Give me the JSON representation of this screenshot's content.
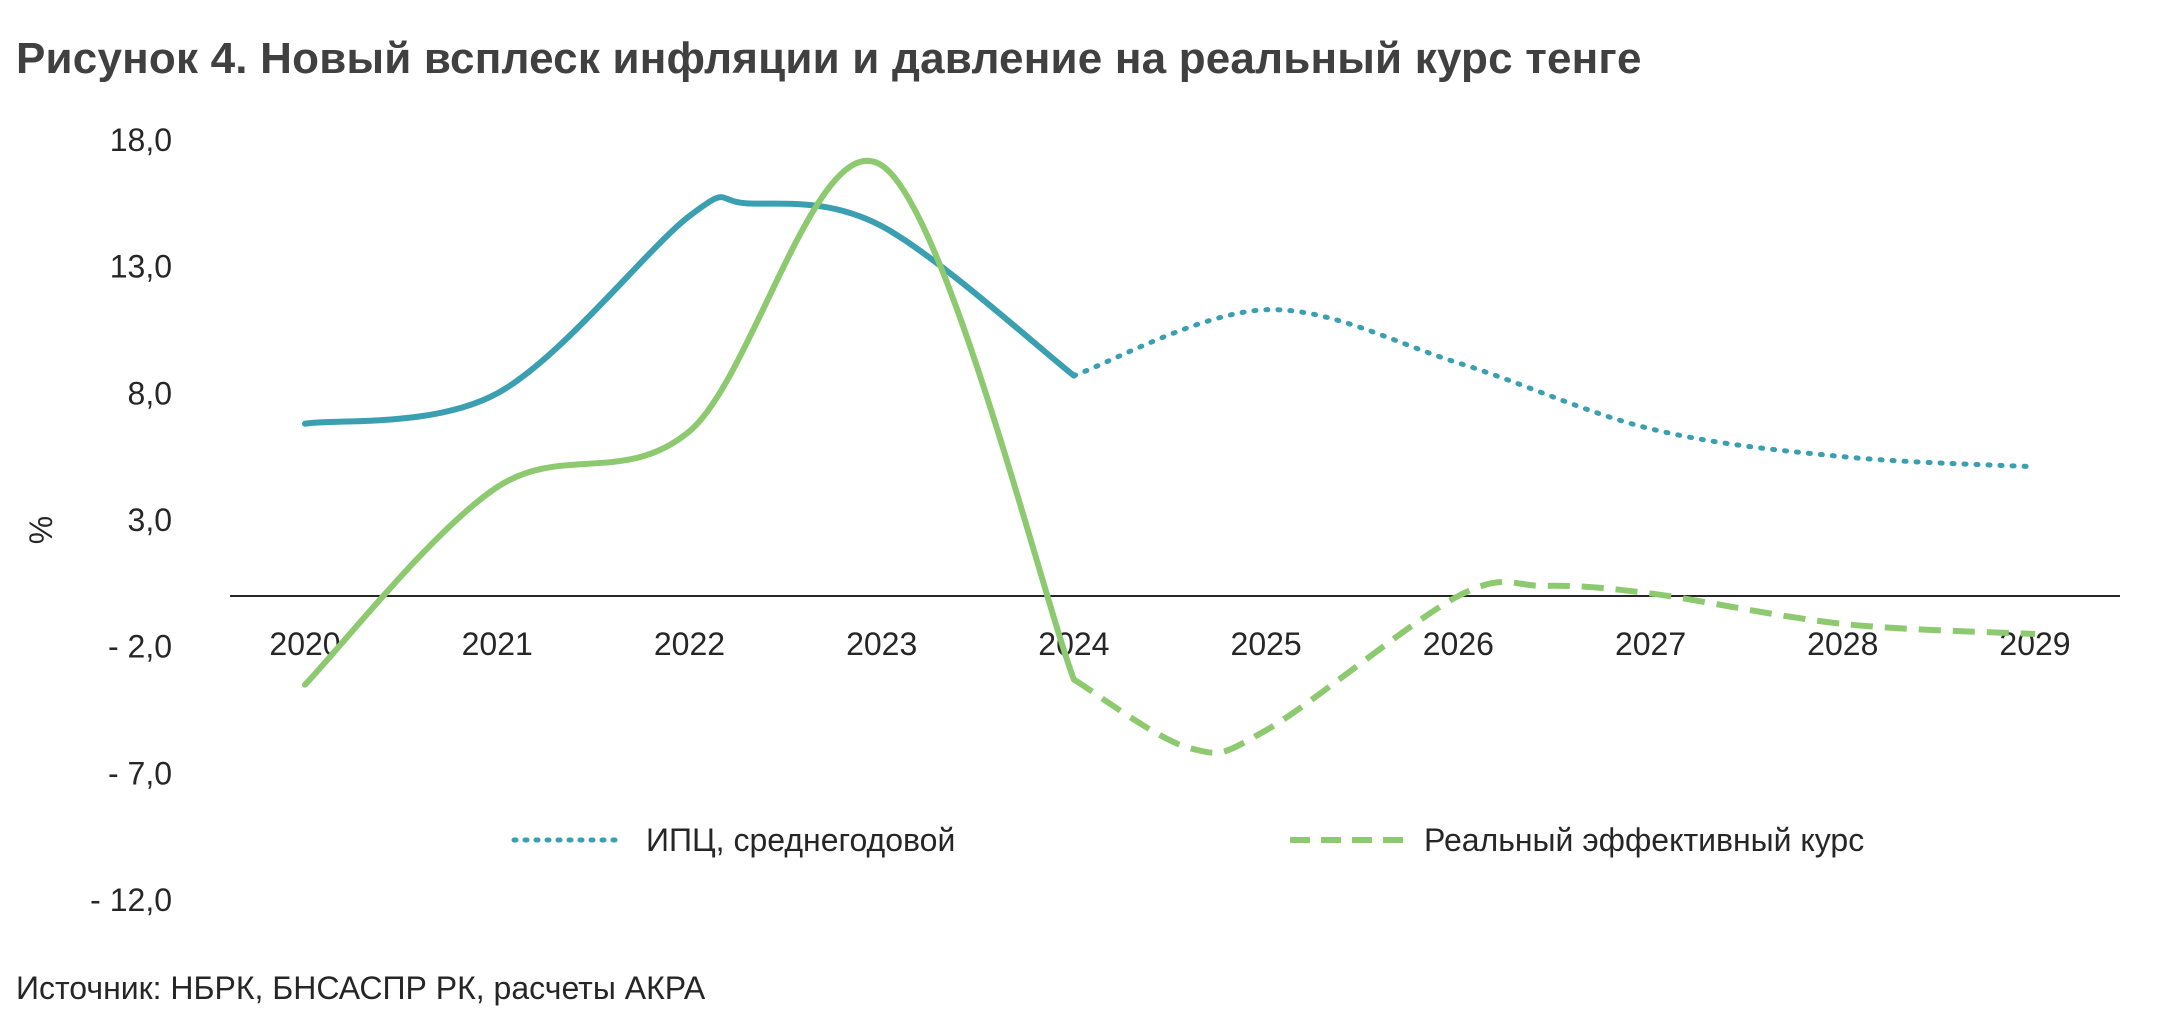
{
  "title": "Рисунок 4. Новый всплеск инфляции и давление на реальный курс тенге",
  "source": "Источник: НБРК, БНСАСПР РК, расчеты АКРА",
  "colors": {
    "cpi": "#3a9fb0",
    "reer": "#8dc96f",
    "axis": "#262626"
  },
  "chart_data": {
    "type": "line",
    "title": "Рисунок 4. Новый всплеск инфляции и давление на реальный курс тенге",
    "xlabel": "",
    "ylabel": "%",
    "ylim": [
      -12,
      18
    ],
    "yticks": [
      18,
      13,
      8,
      3,
      -2,
      -7,
      -12
    ],
    "ytick_labels": [
      "18,0",
      "13,0",
      "8,0",
      "3,0",
      "- 2,0",
      "- 7,0",
      "- 12,0"
    ],
    "x_categories": [
      "2020",
      "2021",
      "2022",
      "2023",
      "2024",
      "2025",
      "2026",
      "2027",
      "2028",
      "2029"
    ],
    "grid": false,
    "legend_position": "bottom",
    "series": [
      {
        "name": "ИПЦ, среднегодовой",
        "style": "solid then dotted (forecast from 2024)",
        "actual": {
          "x": [
            2020,
            2021,
            2022,
            2023,
            2024
          ],
          "y": [
            6.8,
            8.0,
            15.0,
            14.6,
            8.7
          ]
        },
        "forecast": {
          "x": [
            2024,
            2025,
            2026,
            2027,
            2028,
            2029
          ],
          "y": [
            8.7,
            11.3,
            9.2,
            6.6,
            5.5,
            5.1
          ]
        },
        "extra_points": [
          {
            "x": 2022.3,
            "y": 15.5
          }
        ]
      },
      {
        "name": "Реальный эффективный курс",
        "style": "solid then dashed (forecast from 2024)",
        "actual": {
          "x": [
            2020,
            2021,
            2022,
            2023,
            2024
          ],
          "y": [
            -3.5,
            4.3,
            6.5,
            17.0,
            -3.3
          ]
        },
        "forecast": {
          "x": [
            2024,
            2025,
            2026,
            2027,
            2028,
            2029
          ],
          "y": [
            -3.3,
            -5.3,
            0.0,
            0.1,
            -1.1,
            -1.5
          ]
        },
        "extra_points": [
          {
            "x": 2024.6,
            "y": -6.0
          },
          {
            "x": 2026.45,
            "y": 0.4
          }
        ]
      }
    ]
  }
}
